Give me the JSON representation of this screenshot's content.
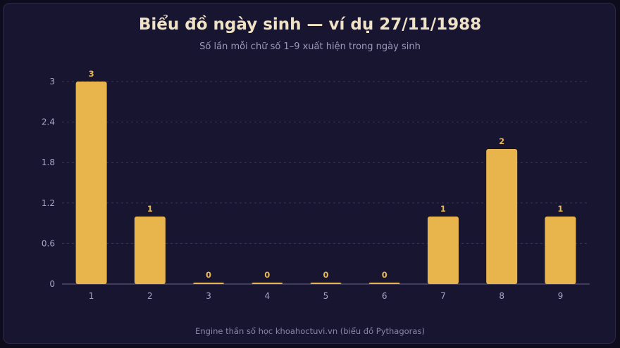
{
  "header": {
    "title": "Biểu đồ ngày sinh — ví dụ 27/11/1988",
    "subtitle": "Số lần mỗi chữ số 1–9 xuất hiện trong ngày sinh"
  },
  "footer": "Engine thần số học khoahoctuvi.vn (biểu đồ Pythagoras)",
  "colors": {
    "bar": "#e8b54c",
    "value_label": "#eab84e",
    "grid": "#3a3658",
    "axis": "#6a6488"
  },
  "chart_data": {
    "type": "bar",
    "title": "Biểu đồ ngày sinh — ví dụ 27/11/1988",
    "subtitle": "Số lần mỗi chữ số 1–9 xuất hiện trong ngày sinh",
    "categories": [
      "1",
      "2",
      "3",
      "4",
      "5",
      "6",
      "7",
      "8",
      "9"
    ],
    "values": [
      3,
      1,
      0,
      0,
      0,
      0,
      1,
      2,
      1
    ],
    "ylim": [
      0,
      3
    ],
    "yticks": [
      "0",
      "0.6",
      "1.2",
      "1.8",
      "2.4",
      "3"
    ],
    "grid": true,
    "xlabel": "",
    "ylabel": ""
  }
}
